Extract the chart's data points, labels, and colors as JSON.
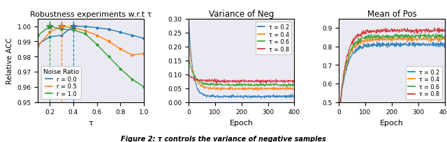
{
  "title1": "Robustness experiments w.r.t τ",
  "title2": "Variance of Neg",
  "title3": "Mean of Pos",
  "caption": "Figure 2: τ controls the variance of negative samples",
  "panel1": {
    "tau_values": [
      0.1,
      0.2,
      0.3,
      0.4,
      0.5,
      0.6,
      0.7,
      0.8,
      0.9,
      1.0
    ],
    "r0_acc": [
      0.988,
      0.993,
      0.994,
      1.0,
      0.9998,
      0.999,
      0.998,
      0.996,
      0.994,
      0.992
    ],
    "r05_acc": [
      0.987,
      0.996,
      1.0,
      0.999,
      0.997,
      0.994,
      0.99,
      0.985,
      0.981,
      0.982
    ],
    "r10_acc": [
      0.994,
      1.0,
      0.998,
      0.9975,
      0.995,
      0.988,
      0.98,
      0.972,
      0.965,
      0.96
    ],
    "vline_colors": [
      "#2ca02c",
      "#ff7f0e",
      "#1f77b4"
    ],
    "vline_x": [
      0.2,
      0.3,
      0.4
    ],
    "ylim": [
      0.95,
      1.005
    ],
    "xlim": [
      0.1,
      1.0
    ],
    "xlabel": "τ",
    "ylabel": "Relative ACC",
    "colors": [
      "#1f77b4",
      "#ff7f0e",
      "#2ca02c"
    ],
    "legend_labels": [
      "r = 0.0",
      "r = 0.5",
      "r = 1.0"
    ],
    "legend_title": "Noise Ratio",
    "peaks": [
      [
        0.2,
        "#2ca02c"
      ],
      [
        0.3,
        "#ff7f0e"
      ],
      [
        0.4,
        "#1f77b4"
      ]
    ]
  },
  "panel2": {
    "epochs": 400,
    "tau_labels": [
      "τ = 0.2",
      "τ = 0.4",
      "τ = 0.6",
      "τ = 0.8"
    ],
    "colors": [
      "#1f77b4",
      "#ff7f0e",
      "#2ca02c",
      "#d62728"
    ],
    "spike_values": [
      0.31,
      0.22,
      0.16,
      0.1
    ],
    "final_values": [
      0.02,
      0.048,
      0.062,
      0.075
    ],
    "decay_rates": [
      15.0,
      18.0,
      20.0,
      22.0
    ],
    "noise_std": 0.0025,
    "ylim": [
      0.0,
      0.3
    ],
    "yticks": [
      0.0,
      0.05,
      0.1,
      0.15,
      0.2,
      0.25,
      0.3
    ],
    "xlabel": "Epoch"
  },
  "panel3": {
    "epochs": 400,
    "tau_labels": [
      "τ = 0.2",
      "τ = 0.4",
      "τ = 0.6",
      "τ = 0.8"
    ],
    "colors": [
      "#1f77b4",
      "#ff7f0e",
      "#2ca02c",
      "#d62728"
    ],
    "spike_values": [
      0.4,
      0.4,
      0.4,
      0.4
    ],
    "final_values": [
      0.81,
      0.84,
      0.855,
      0.885
    ],
    "growth_rates": [
      25.0,
      25.0,
      25.0,
      25.0
    ],
    "noise_std": 0.006,
    "ylim": [
      0.5,
      0.95
    ],
    "yticks": [
      0.5,
      0.6,
      0.7,
      0.8,
      0.9
    ],
    "xlabel": "Epoch"
  },
  "figure_bg": "#eaeaf2"
}
